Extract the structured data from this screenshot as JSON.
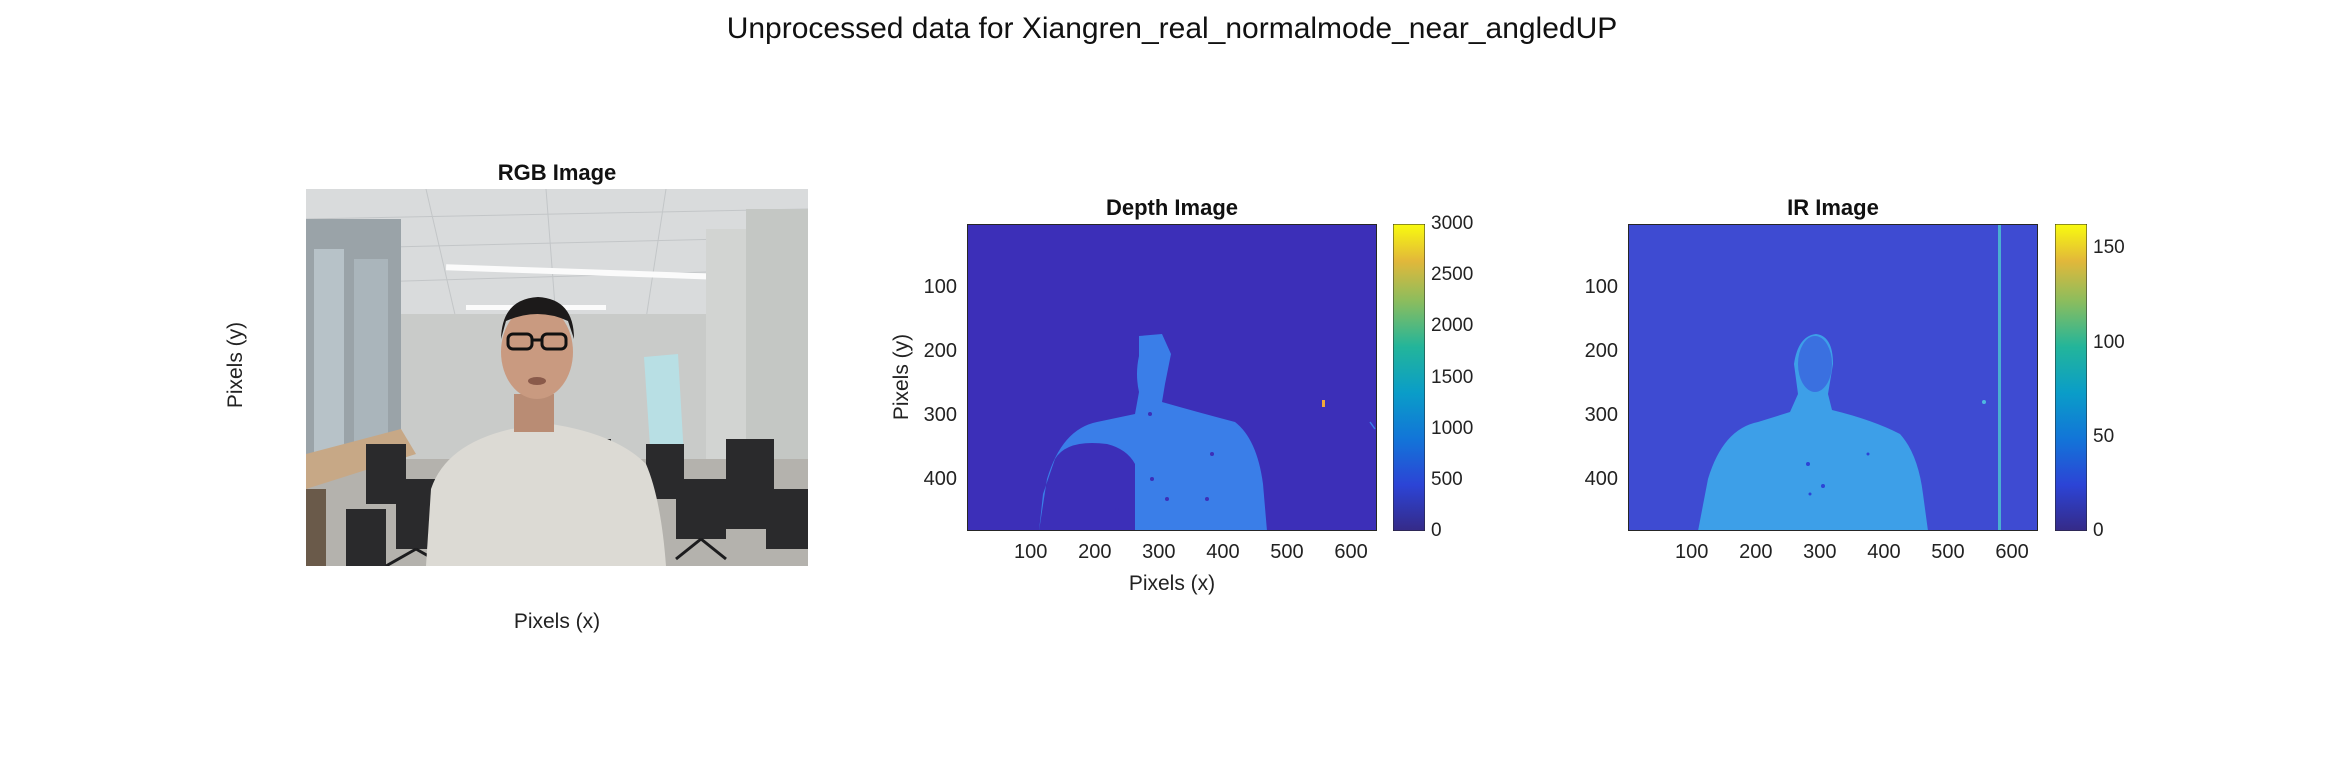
{
  "figure": {
    "title": "Unprocessed data for Xiangren_real_normalmode_near_angledUP"
  },
  "chart_data": [
    {
      "type": "heatmap",
      "title": "RGB Image",
      "xlabel": "Pixels (x)",
      "ylabel": "Pixels (y)",
      "content": "photo",
      "colors": {
        "ceiling": "#d9dbdc",
        "wall": "#c9cbc9",
        "floor": "#b4b2ad",
        "shirt": "#dcdad4",
        "skin": "#c99a80",
        "hair": "#1c1a1a",
        "chairs": "#2a2a2c",
        "board": "#b8dfe4",
        "desk": "#c7a886",
        "light": "#fbfbfb"
      }
    },
    {
      "type": "heatmap",
      "title": "Depth Image",
      "xlabel": "Pixels (x)",
      "ylabel": "Pixels (y)",
      "xlim": [
        0.5,
        640.5
      ],
      "ylim": [
        0.5,
        480.5
      ],
      "xticks": [
        100,
        200,
        300,
        400,
        500,
        600
      ],
      "yticks": [
        100,
        200,
        300,
        400
      ],
      "colorbar": {
        "min": 0,
        "max": 3000,
        "ticks": [
          0,
          500,
          1000,
          1500,
          2000,
          2500,
          3000
        ]
      },
      "colors": {
        "background": "#3c2fb8",
        "body": "#3a7ee8"
      }
    },
    {
      "type": "heatmap",
      "title": "IR Image",
      "xlabel": "",
      "ylabel": "",
      "xlim": [
        0.5,
        640.5
      ],
      "ylim": [
        0.5,
        480.5
      ],
      "xticks": [
        100,
        200,
        300,
        400,
        500,
        600
      ],
      "yticks": [
        100,
        200,
        300,
        400
      ],
      "colorbar": {
        "min": 0,
        "max": 163,
        "ticks": [
          0,
          50,
          100,
          150
        ]
      },
      "colors": {
        "background": "#3e4bd2",
        "body": "#3d9fe8",
        "face": "#3a70e0",
        "streak": "#4fd0d0"
      }
    }
  ]
}
